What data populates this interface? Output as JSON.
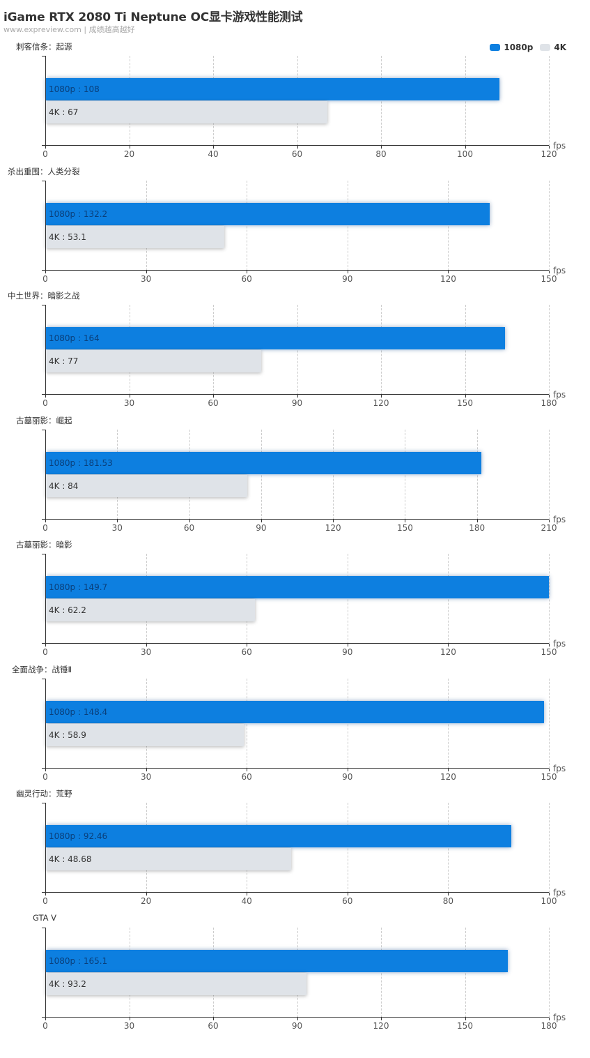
{
  "header": {
    "title": "iGame RTX 2080 Ti Neptune OC显卡游戏性能测试",
    "subtitle": "www.expreview.com | 成绩越高越好"
  },
  "legend": {
    "items": [
      {
        "label": "1080p",
        "color": "#0d7fe0"
      },
      {
        "label": "4K",
        "color": "#dfe3e8"
      }
    ]
  },
  "chart_data": [
    {
      "type": "bar",
      "orientation": "horizontal",
      "title": "刺客信条：起源",
      "xlabel": "fps",
      "xlim": [
        0,
        120
      ],
      "ticks": [
        0,
        20,
        40,
        60,
        80,
        100,
        120
      ],
      "series": [
        {
          "name": "1080p",
          "values": [
            108
          ],
          "label": "1080p : 108"
        },
        {
          "name": "4K",
          "values": [
            67
          ],
          "label": "4K : 67"
        }
      ]
    },
    {
      "type": "bar",
      "orientation": "horizontal",
      "title": "杀出重围：人类分裂",
      "xlabel": "fps",
      "xlim": [
        0,
        150
      ],
      "ticks": [
        0,
        30,
        60,
        90,
        120,
        150
      ],
      "series": [
        {
          "name": "1080p",
          "values": [
            132.2
          ],
          "label": "1080p : 132.2"
        },
        {
          "name": "4K",
          "values": [
            53.1
          ],
          "label": "4K : 53.1"
        }
      ]
    },
    {
      "type": "bar",
      "orientation": "horizontal",
      "title": "中土世界：暗影之战",
      "xlabel": "fps",
      "xlim": [
        0,
        180
      ],
      "ticks": [
        0,
        30,
        60,
        90,
        120,
        150,
        180
      ],
      "series": [
        {
          "name": "1080p",
          "values": [
            164
          ],
          "label": "1080p : 164"
        },
        {
          "name": "4K",
          "values": [
            77
          ],
          "label": "4K : 77"
        }
      ]
    },
    {
      "type": "bar",
      "orientation": "horizontal",
      "title": "古墓丽影：崛起",
      "xlabel": "fps",
      "xlim": [
        0,
        210
      ],
      "ticks": [
        0,
        30,
        60,
        90,
        120,
        150,
        180,
        210
      ],
      "series": [
        {
          "name": "1080p",
          "values": [
            181.53
          ],
          "label": "1080p : 181.53"
        },
        {
          "name": "4K",
          "values": [
            84
          ],
          "label": "4K : 84"
        }
      ]
    },
    {
      "type": "bar",
      "orientation": "horizontal",
      "title": "古墓丽影：暗影",
      "xlabel": "fps",
      "xlim": [
        0,
        150
      ],
      "ticks": [
        0,
        30,
        60,
        90,
        120,
        150
      ],
      "series": [
        {
          "name": "1080p",
          "values": [
            149.7
          ],
          "label": "1080p : 149.7"
        },
        {
          "name": "4K",
          "values": [
            62.2
          ],
          "label": "4K : 62.2"
        }
      ]
    },
    {
      "type": "bar",
      "orientation": "horizontal",
      "title": "全面战争：战锤Ⅱ",
      "xlabel": "fps",
      "xlim": [
        0,
        150
      ],
      "ticks": [
        0,
        30,
        60,
        90,
        120,
        150
      ],
      "series": [
        {
          "name": "1080p",
          "values": [
            148.4
          ],
          "label": "1080p : 148.4"
        },
        {
          "name": "4K",
          "values": [
            58.9
          ],
          "label": "4K : 58.9"
        }
      ]
    },
    {
      "type": "bar",
      "orientation": "horizontal",
      "title": "幽灵行动：荒野",
      "xlabel": "fps",
      "xlim": [
        0,
        100
      ],
      "ticks": [
        0,
        20,
        40,
        60,
        80,
        100
      ],
      "series": [
        {
          "name": "1080p",
          "values": [
            92.46
          ],
          "label": "1080p : 92.46"
        },
        {
          "name": "4K",
          "values": [
            48.68
          ],
          "label": "4K : 48.68"
        }
      ]
    },
    {
      "type": "bar",
      "orientation": "horizontal",
      "title": "GTA V",
      "xlabel": "fps",
      "xlim": [
        0,
        180
      ],
      "ticks": [
        0,
        30,
        60,
        90,
        120,
        150,
        180
      ],
      "series": [
        {
          "name": "1080p",
          "values": [
            165.1
          ],
          "label": "1080p : 165.1"
        },
        {
          "name": "4K",
          "values": [
            93.2
          ],
          "label": "4K : 93.2"
        }
      ]
    }
  ]
}
